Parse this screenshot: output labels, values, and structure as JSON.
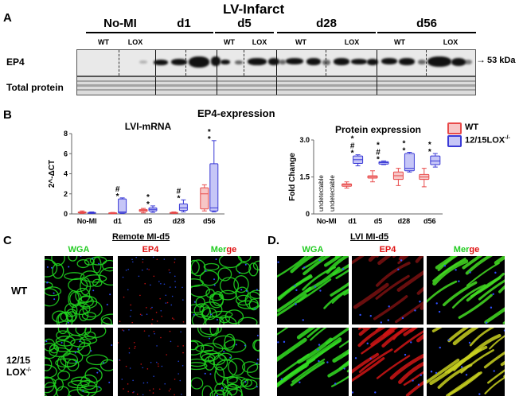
{
  "panel_a": {
    "letter": "A",
    "title": "LV-Infarct",
    "groups": [
      "No-MI",
      "d1",
      "d5",
      "d28",
      "d56"
    ],
    "lane_labels": {
      "wt": "WT",
      "lox": "LOX"
    },
    "row_labels": {
      "ep4": "EP4",
      "total": "Total protein"
    },
    "marker": "53 kDa",
    "marker_arrow": "→"
  },
  "panel_b": {
    "letter": "B",
    "heading": "EP4-expression",
    "legend": [
      {
        "label": "WT",
        "color": "#e84a4a",
        "fill": "#f7c6c6"
      },
      {
        "label": "12/15LOX",
        "sup": "-/-",
        "color": "#3a3ad6",
        "fill": "#c6c6f7"
      }
    ]
  },
  "chart_data": [
    {
      "type": "box",
      "title": "LVI-mRNA",
      "ylabel": "2^-ΔCT",
      "categories": [
        "No-MI",
        "d1",
        "d5",
        "d28",
        "d56"
      ],
      "ylim": [
        0,
        8
      ],
      "yticks": [
        0,
        2,
        4,
        6,
        8
      ],
      "series": [
        {
          "name": "WT",
          "boxes": [
            {
              "min": 0.05,
              "q1": 0.1,
              "median": 0.15,
              "q3": 0.2,
              "max": 0.3
            },
            {
              "min": 0.02,
              "q1": 0.05,
              "median": 0.08,
              "q3": 0.12,
              "max": 0.15
            },
            {
              "min": 0.1,
              "q1": 0.25,
              "median": 0.35,
              "q3": 0.45,
              "max": 0.55
            },
            {
              "min": 0.05,
              "q1": 0.08,
              "median": 0.1,
              "q3": 0.15,
              "max": 0.2
            },
            {
              "min": 0.3,
              "q1": 0.5,
              "median": 2.0,
              "q3": 2.6,
              "max": 2.9
            }
          ]
        },
        {
          "name": "12/15LOX-/-",
          "boxes": [
            {
              "min": 0.05,
              "q1": 0.1,
              "median": 0.12,
              "q3": 0.15,
              "max": 0.2
            },
            {
              "min": 0.05,
              "q1": 0.1,
              "median": 0.2,
              "q3": 1.5,
              "max": 1.6
            },
            {
              "min": 0.15,
              "q1": 0.3,
              "median": 0.45,
              "q3": 0.6,
              "max": 0.8
            },
            {
              "min": 0.2,
              "q1": 0.35,
              "median": 0.6,
              "q3": 1.0,
              "max": 1.4
            },
            {
              "min": 0.2,
              "q1": 0.3,
              "median": 0.6,
              "q3": 5.0,
              "max": 7.3
            }
          ]
        }
      ],
      "annotations": [
        {
          "category": "d1",
          "marks": [
            "#",
            "*"
          ]
        },
        {
          "category": "d5",
          "marks": [
            "*",
            "*"
          ]
        },
        {
          "category": "d28",
          "marks": [
            "#",
            "*"
          ]
        },
        {
          "category": "d56",
          "marks": [
            "*",
            "*"
          ]
        }
      ]
    },
    {
      "type": "box",
      "title": "Protein expression",
      "ylabel": "Fold Change",
      "categories": [
        "No-MI",
        "d1",
        "d5",
        "d28",
        "d56"
      ],
      "ylim": [
        0,
        3.0
      ],
      "yticks": [
        "0",
        "1.5",
        "3.0"
      ],
      "nodata_label": "undetectable",
      "series": [
        {
          "name": "WT",
          "boxes": [
            null,
            {
              "min": 1.05,
              "q1": 1.12,
              "median": 1.18,
              "q3": 1.22,
              "max": 1.3
            },
            {
              "min": 1.3,
              "q1": 1.45,
              "median": 1.5,
              "q3": 1.55,
              "max": 1.75
            },
            {
              "min": 1.15,
              "q1": 1.4,
              "median": 1.55,
              "q3": 1.7,
              "max": 1.85
            },
            {
              "min": 1.1,
              "q1": 1.4,
              "median": 1.5,
              "q3": 1.6,
              "max": 1.85
            }
          ]
        },
        {
          "name": "12/15LOX-/-",
          "boxes": [
            null,
            {
              "min": 1.95,
              "q1": 2.05,
              "median": 2.2,
              "q3": 2.35,
              "max": 2.4
            },
            {
              "min": 2.0,
              "q1": 2.02,
              "median": 2.08,
              "q3": 2.12,
              "max": 2.15
            },
            {
              "min": 1.7,
              "q1": 1.75,
              "median": 1.85,
              "q3": 2.45,
              "max": 2.5
            },
            {
              "min": 1.9,
              "q1": 2.0,
              "median": 2.15,
              "q3": 2.35,
              "max": 2.45
            }
          ]
        }
      ],
      "annotations": [
        {
          "category": "d1",
          "marks": [
            "*",
            "#",
            "*"
          ]
        },
        {
          "category": "d5",
          "marks": [
            "*",
            "#",
            "*"
          ]
        },
        {
          "category": "d28",
          "marks": [
            "*",
            "*"
          ]
        },
        {
          "category": "d56",
          "marks": [
            "*",
            "*"
          ]
        }
      ]
    }
  ],
  "panel_c": {
    "letter": "C",
    "title": "Remote MI-d5",
    "channels": [
      "WGA",
      "EP4",
      "Merge"
    ],
    "rows": [
      "WT",
      "12/15",
      "LOX"
    ],
    "row_sup": "-/-"
  },
  "panel_d": {
    "letter": "D.",
    "title": "LVI MI-d5",
    "channels": [
      "WGA",
      "EP4",
      "Merge"
    ]
  },
  "merge_parts": {
    "green": "Mer",
    "red": "ge"
  },
  "colors": {
    "green": "#22cc22",
    "red": "#e01010"
  }
}
